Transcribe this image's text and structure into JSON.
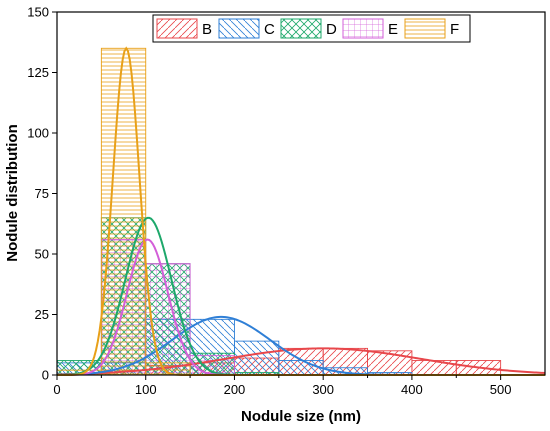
{
  "chart_data": {
    "type": "bar",
    "title": "",
    "xlabel": "Nodule size (nm)",
    "ylabel": "Nodule distribution",
    "xlim": [
      0,
      550
    ],
    "ylim": [
      0,
      150
    ],
    "x_ticks": [
      0,
      100,
      200,
      300,
      400,
      500
    ],
    "y_ticks": [
      0,
      25,
      50,
      75,
      100,
      125,
      150
    ],
    "grid": false,
    "legend_position": "top-right",
    "bins": [
      [
        0,
        50
      ],
      [
        50,
        100
      ],
      [
        100,
        150
      ],
      [
        150,
        200
      ],
      [
        200,
        250
      ],
      [
        250,
        300
      ],
      [
        300,
        350
      ],
      [
        350,
        400
      ],
      [
        400,
        450
      ],
      [
        450,
        500
      ]
    ],
    "series": [
      {
        "name": "B",
        "color": "#e8474b",
        "hatch": "diagonal-up",
        "counts": [
          0,
          2,
          4,
          5,
          7,
          11,
          11,
          10,
          6,
          6
        ],
        "fit": {
          "peak": 11,
          "center": 300,
          "sigma": 110
        }
      },
      {
        "name": "C",
        "color": "#2f7fd6",
        "hatch": "diagonal-down",
        "counts": [
          5,
          5,
          23,
          23,
          14,
          6,
          3,
          1,
          0,
          0
        ],
        "fit": {
          "peak": 24,
          "center": 185,
          "sigma": 55
        }
      },
      {
        "name": "D",
        "color": "#1ea86b",
        "hatch": "crosshatch-diagonal",
        "counts": [
          6,
          65,
          46,
          9,
          1,
          0,
          0,
          0,
          0,
          0
        ],
        "fit": {
          "peak": 65,
          "center": 103,
          "sigma": 26
        }
      },
      {
        "name": "E",
        "color": "#d35fd8",
        "hatch": "grid",
        "counts": [
          0,
          56,
          46,
          8,
          0,
          0,
          0,
          0,
          0,
          0
        ],
        "fit": {
          "peak": 56,
          "center": 102,
          "sigma": 23
        }
      },
      {
        "name": "F",
        "color": "#e8a018",
        "hatch": "horizontal",
        "counts": [
          2,
          135,
          5,
          0,
          0,
          0,
          0,
          0,
          0,
          0
        ],
        "fit": {
          "peak": 135,
          "center": 78,
          "sigma": 15
        }
      }
    ]
  }
}
